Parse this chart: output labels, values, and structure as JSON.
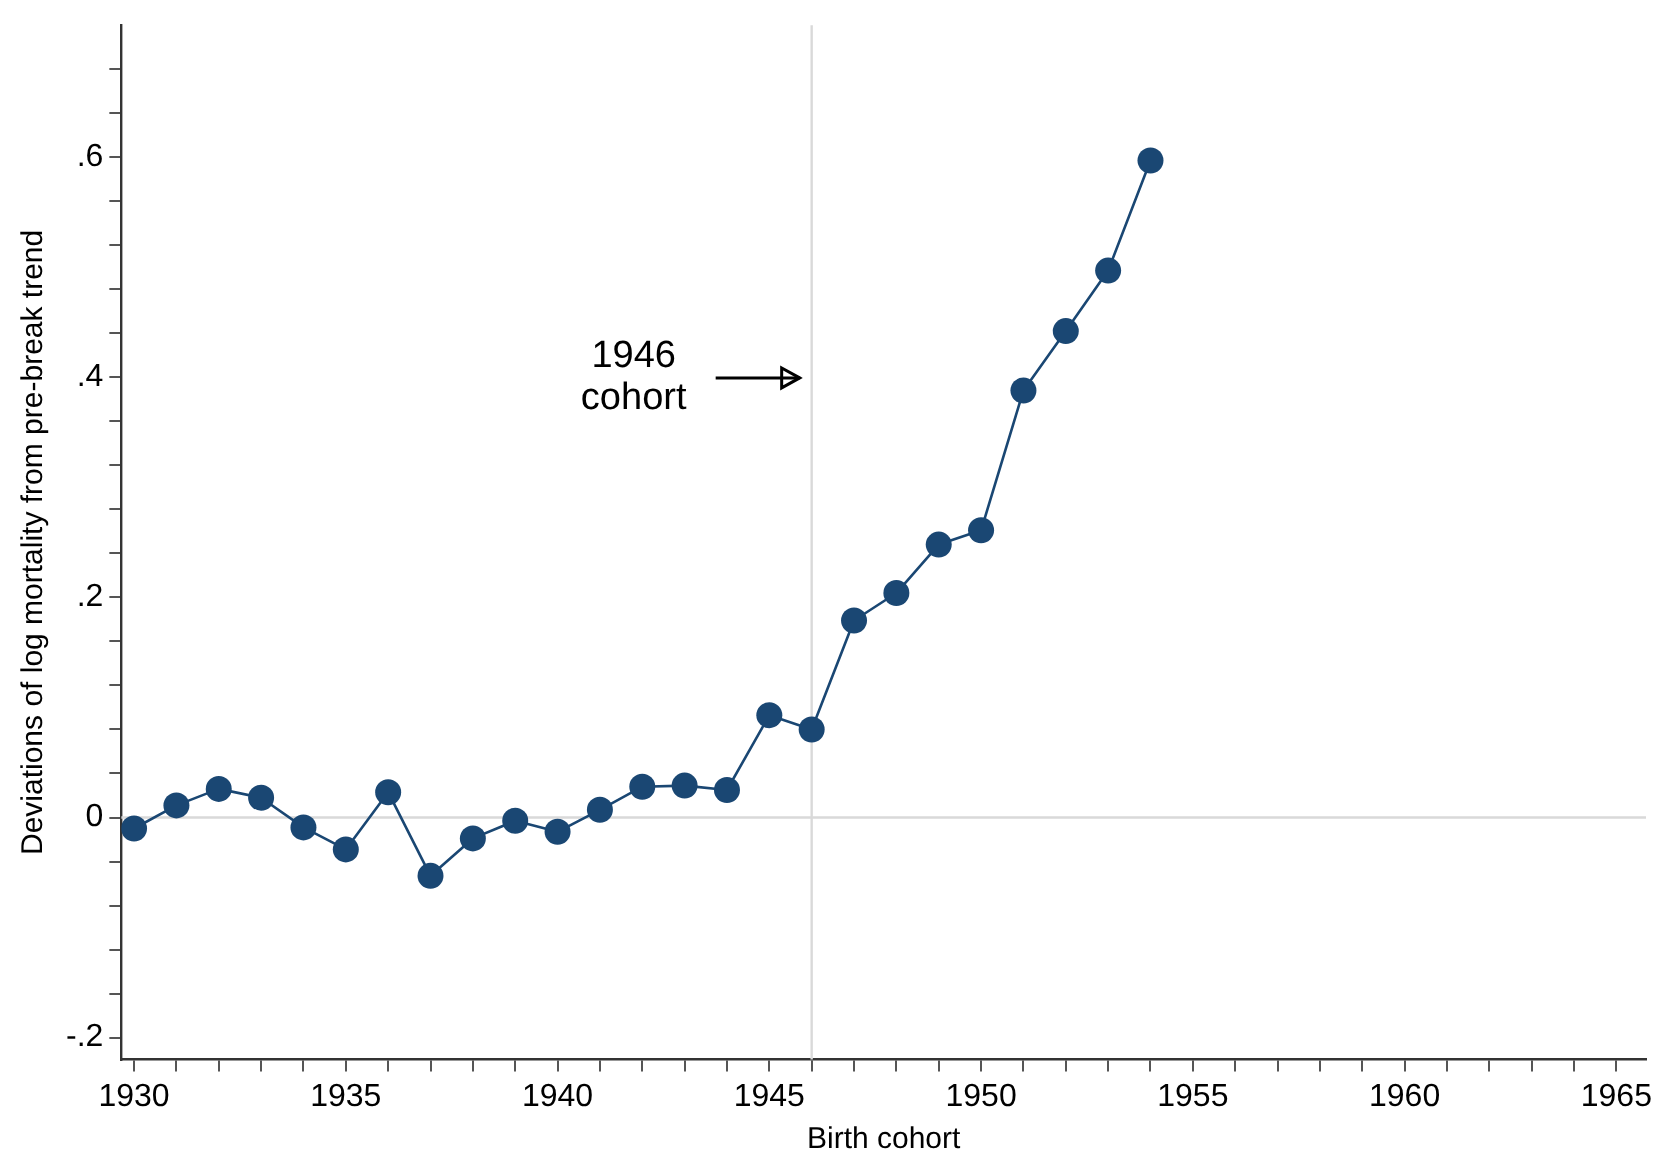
{
  "chart_data": {
    "type": "line",
    "xlabel": "Birth cohort",
    "ylabel": "Deviations of log mortality from pre-break trend",
    "x": [
      1930,
      1931,
      1932,
      1933,
      1934,
      1935,
      1936,
      1937,
      1938,
      1939,
      1940,
      1941,
      1942,
      1943,
      1944,
      1945,
      1946,
      1947,
      1948,
      1949,
      1950,
      1951,
      1952,
      1953,
      1954
    ],
    "series": [
      {
        "color": "#1a4773",
        "values": [
          -0.01,
          0.011,
          0.026,
          0.018,
          -0.009,
          -0.029,
          0.023,
          -0.053,
          -0.019,
          -0.003,
          -0.013,
          0.007,
          0.028,
          0.029,
          0.025,
          0.093,
          0.08,
          0.179,
          0.204,
          0.248,
          0.261,
          0.388,
          0.442,
          0.497,
          0.597
        ]
      }
    ],
    "marker": "circle",
    "line_style": "solid",
    "grid": false,
    "legend": false,
    "xlim": [
      1929.7,
      1965.7
    ],
    "xticks": [
      1930,
      {
        "value": 1931,
        "label": null
      },
      {
        "value": 1932,
        "label": null
      },
      {
        "value": 1933,
        "label": null
      },
      {
        "value": 1934,
        "label": null
      },
      1935,
      {
        "value": 1936,
        "label": null
      },
      {
        "value": 1937,
        "label": null
      },
      {
        "value": 1938,
        "label": null
      },
      {
        "value": 1939,
        "label": null
      },
      1940,
      {
        "value": 1941,
        "label": null
      },
      {
        "value": 1942,
        "label": null
      },
      {
        "value": 1943,
        "label": null
      },
      {
        "value": 1944,
        "label": null
      },
      1945,
      {
        "value": 1946,
        "label": null
      },
      {
        "value": 1947,
        "label": null
      },
      {
        "value": 1948,
        "label": null
      },
      {
        "value": 1949,
        "label": null
      },
      1950,
      {
        "value": 1951,
        "label": null
      },
      {
        "value": 1952,
        "label": null
      },
      {
        "value": 1953,
        "label": null
      },
      {
        "value": 1954,
        "label": null
      },
      1955,
      {
        "value": 1956,
        "label": null
      },
      {
        "value": 1957,
        "label": null
      },
      {
        "value": 1958,
        "label": null
      },
      {
        "value": 1959,
        "label": null
      },
      1960,
      {
        "value": 1961,
        "label": null
      },
      {
        "value": 1962,
        "label": null
      },
      {
        "value": 1963,
        "label": null
      },
      {
        "value": 1964,
        "label": null
      },
      1965
    ],
    "ylim": [
      -0.22,
      0.72
    ],
    "yticks": [
      {
        "value": -0.2,
        "label": "-.2"
      },
      {
        "value": -0.16,
        "label": null
      },
      {
        "value": -0.12,
        "label": null
      },
      {
        "value": -0.08,
        "label": null
      },
      {
        "value": -0.04,
        "label": null
      },
      0,
      {
        "value": 0.04,
        "label": null
      },
      {
        "value": 0.08,
        "label": null
      },
      {
        "value": 0.12,
        "label": null
      },
      {
        "value": 0.16,
        "label": null
      },
      {
        "value": 0.2,
        "label": ".2"
      },
      {
        "value": 0.24,
        "label": null
      },
      {
        "value": 0.28,
        "label": null
      },
      {
        "value": 0.32,
        "label": null
      },
      {
        "value": 0.36,
        "label": null
      },
      {
        "value": 0.4,
        "label": ".4"
      },
      {
        "value": 0.44,
        "label": null
      },
      {
        "value": 0.48,
        "label": null
      },
      {
        "value": 0.52,
        "label": null
      },
      {
        "value": 0.56,
        "label": null
      },
      {
        "value": 0.6,
        "label": ".6"
      },
      {
        "value": 0.64,
        "label": null
      },
      {
        "value": 0.68,
        "label": null
      }
    ],
    "ref_lines": [
      {
        "axis": "y",
        "value": 0,
        "label": null,
        "color": "#d9d9d9"
      },
      {
        "axis": "x",
        "value": 1946,
        "label": null,
        "color": "#d9d9d9"
      }
    ],
    "annotations": [
      "1946\ncohort"
    ]
  }
}
